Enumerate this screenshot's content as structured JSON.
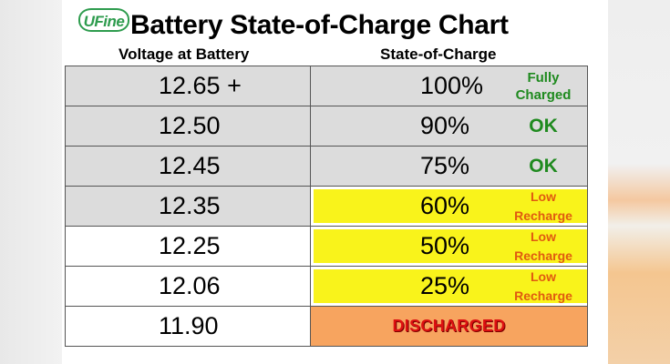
{
  "brand": {
    "logo_text": "UFine"
  },
  "title": "Battery State-of-Charge Chart",
  "columns": {
    "voltage": "Voltage at Battery",
    "charge": "State-of-Charge"
  },
  "rows": [
    {
      "voltage": "12.65 +",
      "charge": "100%",
      "status_line1": "Fully",
      "status_line2": "Charged",
      "fill": "gray"
    },
    {
      "voltage": "12.50",
      "charge": "90%",
      "status_line1": "OK",
      "status_line2": "",
      "fill": "gray"
    },
    {
      "voltage": "12.45",
      "charge": "75%",
      "status_line1": "OK",
      "status_line2": "",
      "fill": "gray"
    },
    {
      "voltage": "12.35",
      "charge": "60%",
      "status_line1": "Low",
      "status_line2": "Recharge",
      "fill": "yellow"
    },
    {
      "voltage": "12.25",
      "charge": "50%",
      "status_line1": "Low",
      "status_line2": "Recharge",
      "fill": "yellow"
    },
    {
      "voltage": "12.06",
      "charge": "25%",
      "status_line1": "Low",
      "status_line2": "Recharge",
      "fill": "yellow"
    },
    {
      "voltage": "11.90",
      "charge": "",
      "status_line1": "DISCHARGED",
      "status_line2": "",
      "fill": "orange"
    }
  ],
  "colors": {
    "row_gray": "#dcdcdc",
    "highlight_yellow": "#f9f31b",
    "discharged_orange": "#f7a45f",
    "ok_green": "#1f8a1f",
    "low_orange": "#e05a10",
    "discharged_red": "#dd1111",
    "brand_green": "#2e9c4e"
  }
}
